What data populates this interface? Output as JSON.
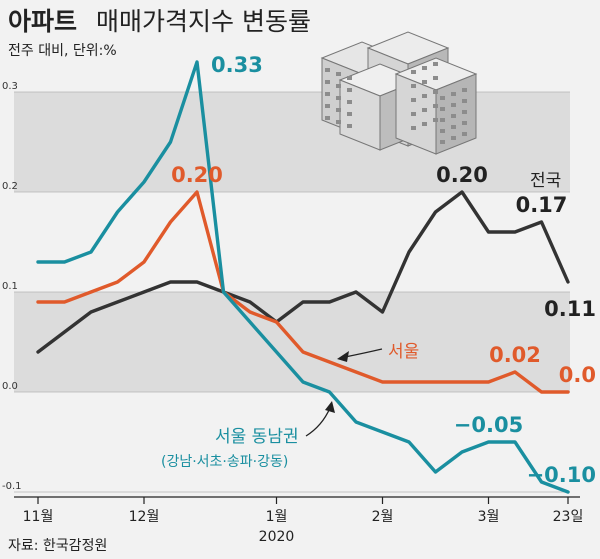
{
  "header": {
    "title_bold": "아파트",
    "title_rest": "매매가격지수 변동률",
    "unit": "전주 대비, 단위:%"
  },
  "source": "자료: 한국감정원",
  "illustration": {
    "icon": "apartment-buildings-icon"
  },
  "chart_data": {
    "type": "line",
    "ylim": [
      -0.1,
      0.34
    ],
    "yticks": [
      {
        "v": 0.3,
        "label": "0.3"
      },
      {
        "v": 0.2,
        "label": "0.2"
      },
      {
        "v": 0.1,
        "label": "0.1"
      },
      {
        "v": 0.0,
        "label": "0.0"
      },
      {
        "v": -0.1,
        "label": "-0.1"
      }
    ],
    "xticks": [
      {
        "i": 0,
        "label": "11월"
      },
      {
        "i": 4,
        "label": "12월"
      },
      {
        "i": 9,
        "label": "1월"
      },
      {
        "i": 13,
        "label": "2월"
      },
      {
        "i": 17,
        "label": "3월"
      },
      {
        "i": 20,
        "label": "23일"
      }
    ],
    "year_label": {
      "i": 9,
      "label": "2020"
    },
    "series": [
      {
        "name": "전국",
        "color": "#333333",
        "values": [
          0.04,
          0.06,
          0.08,
          0.09,
          0.1,
          0.11,
          0.11,
          0.1,
          0.09,
          0.07,
          0.09,
          0.09,
          0.1,
          0.08,
          0.14,
          0.18,
          0.2,
          0.16,
          0.16,
          0.17,
          0.11
        ],
        "labels": [
          {
            "i": 16,
            "text": "0.20",
            "pos": "above"
          },
          {
            "i": 19,
            "text": "0.17",
            "pos": "above"
          },
          {
            "i": 20,
            "text": "0.11",
            "pos": "below"
          }
        ]
      },
      {
        "name": "서울",
        "color": "#e05a2b",
        "values": [
          0.09,
          0.09,
          0.1,
          0.11,
          0.13,
          0.17,
          0.2,
          0.1,
          0.08,
          0.07,
          0.04,
          0.03,
          0.02,
          0.01,
          0.01,
          0.01,
          0.01,
          0.01,
          0.02,
          0.0,
          0.0
        ],
        "labels": [
          {
            "i": 6,
            "text": "0.20",
            "pos": "above"
          },
          {
            "i": 18,
            "text": "0.02",
            "pos": "above"
          },
          {
            "i": 20,
            "text": "0.0",
            "pos": "above"
          }
        ]
      },
      {
        "name": "서울 동남권",
        "subtitle": "(강남·서초·송파·강동)",
        "color": "#1a8fa0",
        "values": [
          0.13,
          0.13,
          0.14,
          0.18,
          0.21,
          0.25,
          0.33,
          0.1,
          0.07,
          0.04,
          0.01,
          0.0,
          -0.03,
          -0.04,
          -0.05,
          -0.08,
          -0.06,
          -0.05,
          -0.05,
          -0.09,
          -0.1
        ],
        "labels": [
          {
            "i": 6,
            "text": "0.33",
            "pos": "right"
          },
          {
            "i": 17,
            "text": "−0.05",
            "pos": "above"
          },
          {
            "i": 20,
            "text": "−0.10",
            "pos": "above"
          }
        ]
      }
    ]
  }
}
